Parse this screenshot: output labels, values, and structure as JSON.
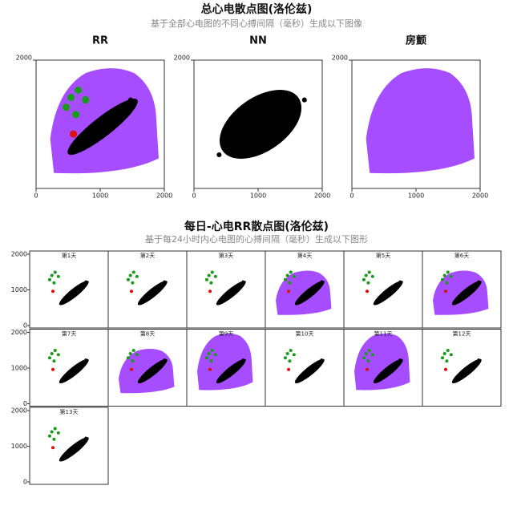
{
  "header": {
    "title": "总心电散点图(洛伦兹)",
    "subtitle": "基于全部心电图的不同心搏间隔（毫秒）生成以下图像"
  },
  "overview": {
    "xlim": [
      0,
      2000
    ],
    "ylim": [
      0,
      2000
    ],
    "xticks": [
      0,
      1000,
      2000
    ],
    "yticks": [
      2000
    ],
    "panels": [
      {
        "title": "RR"
      },
      {
        "title": "NN"
      },
      {
        "title": "房颤"
      }
    ]
  },
  "daily": {
    "title": "每日-心电RR散点图(洛伦兹)",
    "subtitle": "基于每24小时内心电图的心搏间隔（毫秒）生成以下图形",
    "ylim": [
      0,
      2000
    ],
    "yticks": [
      0,
      1000,
      2000
    ],
    "panels": [
      "第1天",
      "第2天",
      "第3天",
      "第4天",
      "第5天",
      "第6天",
      "第7天",
      "第8天",
      "第9天",
      "第10天",
      "第11天",
      "第12天",
      "第13天"
    ]
  }
}
